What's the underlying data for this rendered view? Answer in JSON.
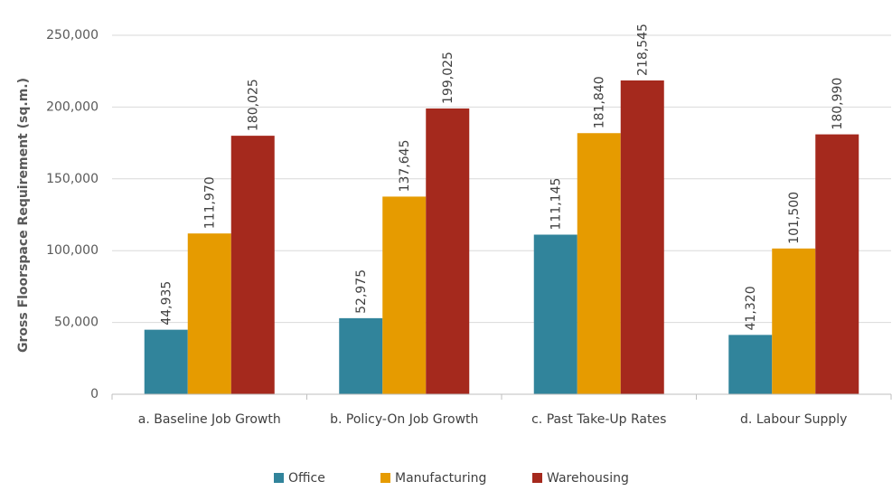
{
  "chart_data": {
    "type": "bar",
    "title": "",
    "xlabel": "",
    "ylabel": "Gross Floorspace Requirement (sq.m.)",
    "ylim": [
      0,
      250000
    ],
    "yticks": [
      0,
      50000,
      100000,
      150000,
      200000,
      250000
    ],
    "ytick_labels": [
      "0",
      "50,000",
      "100,000",
      "150,000",
      "200,000",
      "250,000"
    ],
    "grid": true,
    "legend_position": "bottom",
    "categories": [
      "a. Baseline Job Growth",
      "b. Policy-On Job Growth",
      "c. Past Take-Up Rates",
      "d. Labour Supply"
    ],
    "series": [
      {
        "name": "Office",
        "color": "#31849B",
        "values": [
          44935,
          52975,
          111145,
          41320
        ],
        "labels": [
          "44,935",
          "52,975",
          "111,145",
          "41,320"
        ]
      },
      {
        "name": "Manufacturing",
        "color": "#E69B00",
        "values": [
          111970,
          137645,
          181840,
          101500
        ],
        "labels": [
          "111,970",
          "137,645",
          "181,840",
          "101,500"
        ]
      },
      {
        "name": "Warehousing",
        "color": "#A5291D",
        "values": [
          180025,
          199025,
          218545,
          180990
        ],
        "labels": [
          "180,025",
          "199,025",
          "218,545",
          "180,990"
        ]
      }
    ]
  }
}
